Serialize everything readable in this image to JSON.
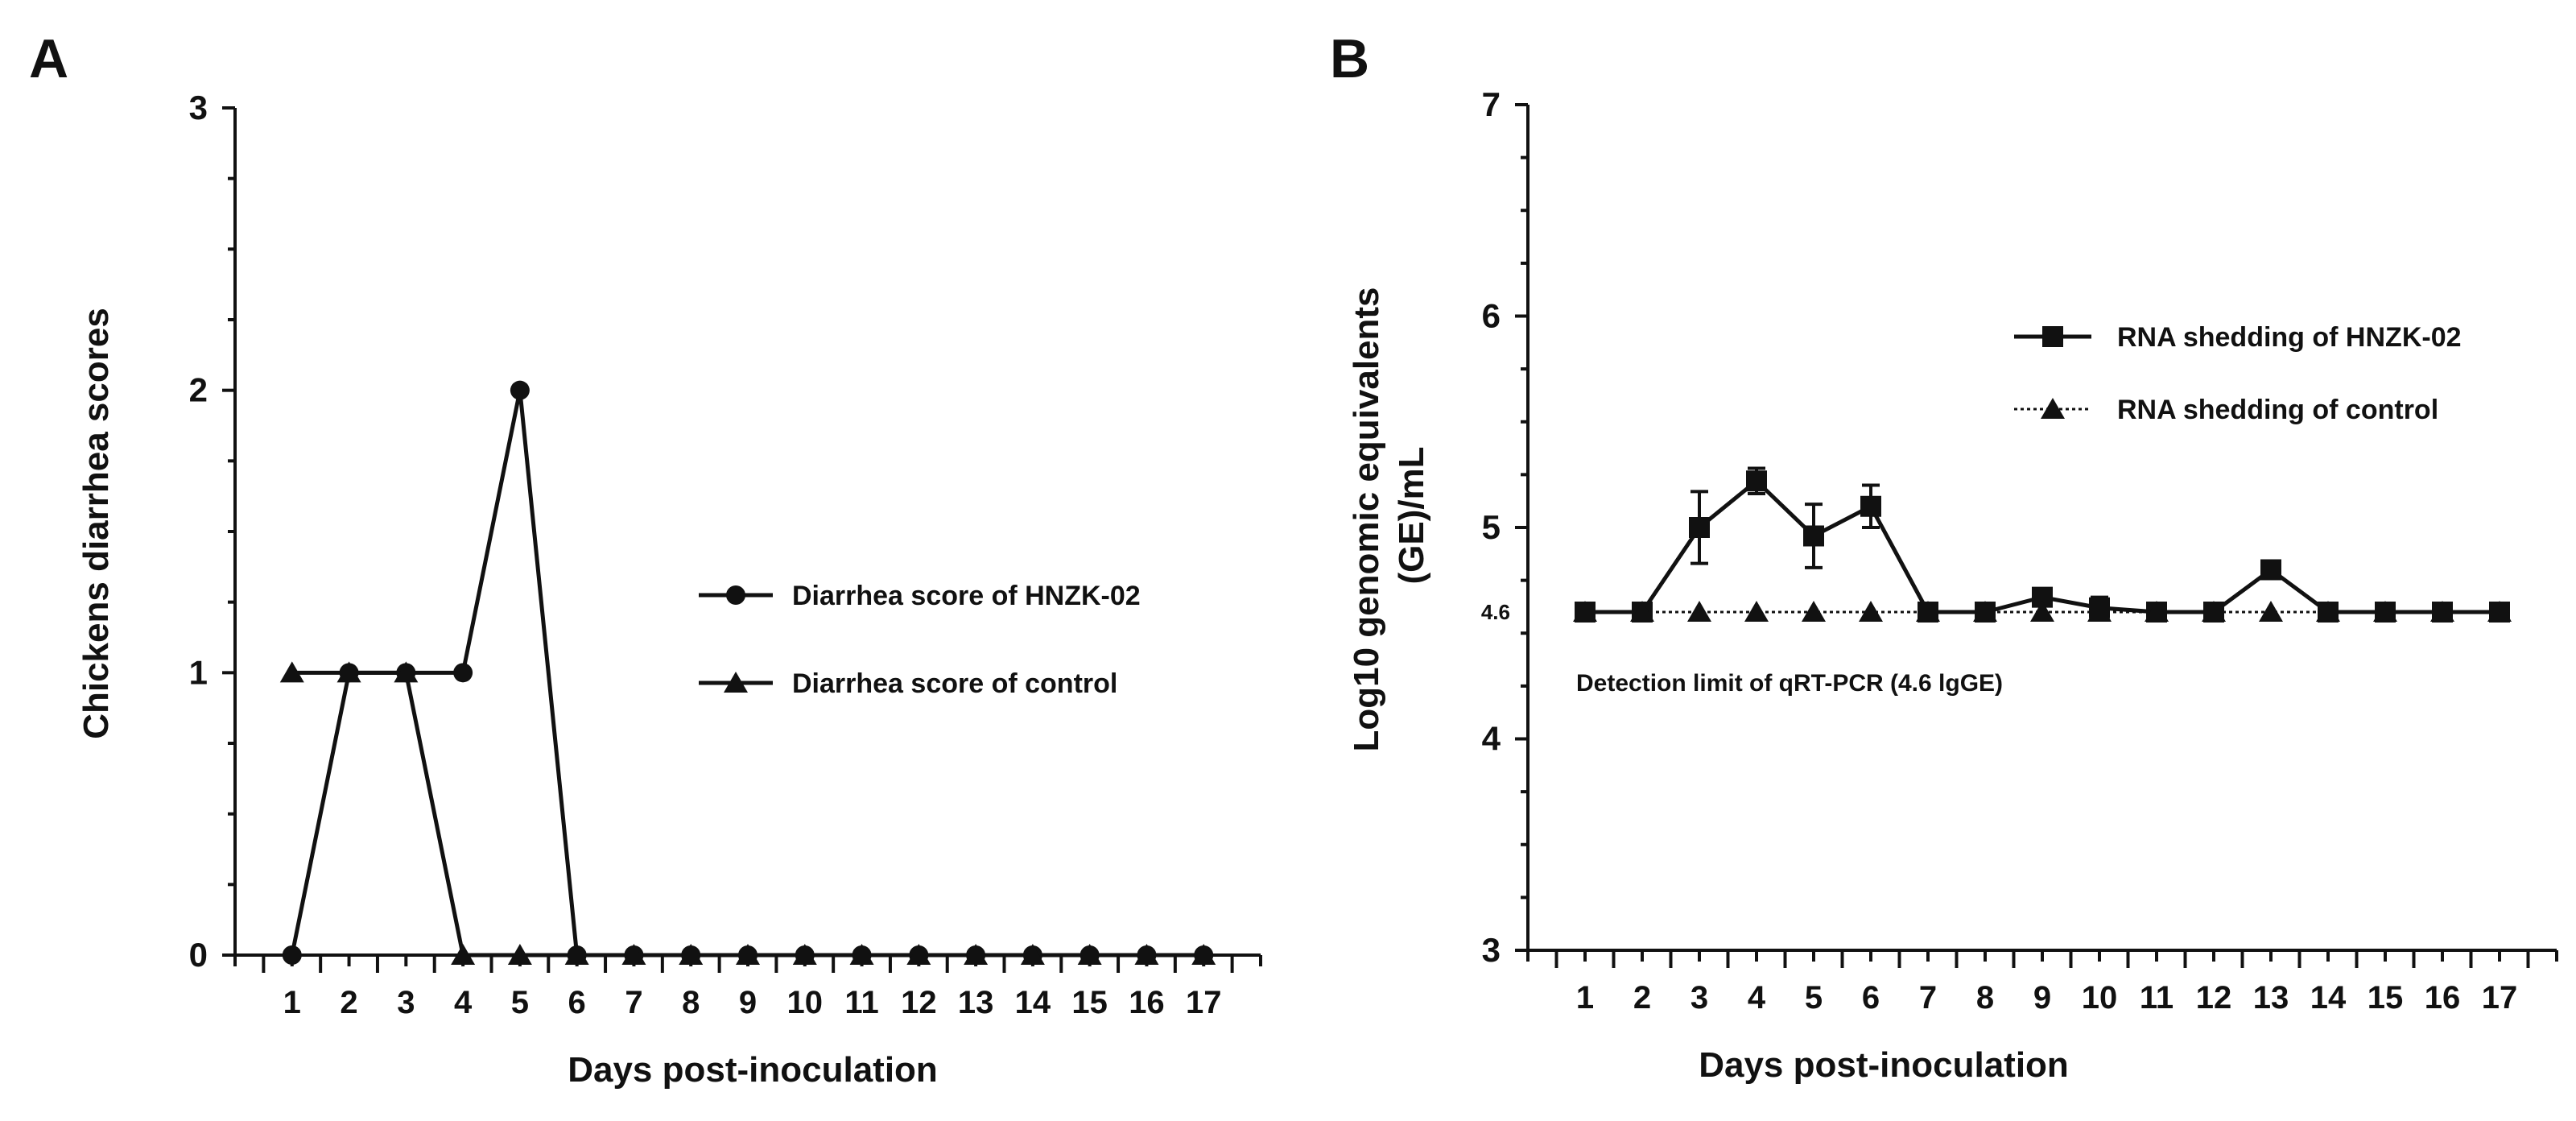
{
  "panels": [
    {
      "label": "A",
      "chart_data": {
        "type": "line",
        "title": "",
        "xlabel": "Days post-inoculation",
        "ylabel": "Chickens diarrhea scores",
        "x": [
          1,
          2,
          3,
          4,
          5,
          6,
          7,
          8,
          9,
          10,
          11,
          12,
          13,
          14,
          15,
          16,
          17
        ],
        "xlim": [
          0,
          18
        ],
        "ylim": [
          0,
          3
        ],
        "yticks": [
          0,
          1,
          2,
          3
        ],
        "series": [
          {
            "name": "Diarrhea score of HNZK-02",
            "marker": "circle",
            "line": "solid",
            "values": [
              0,
              1,
              1,
              1,
              2,
              0,
              0,
              0,
              0,
              0,
              0,
              0,
              0,
              0,
              0,
              0,
              0
            ]
          },
          {
            "name": "Diarrhea score of control",
            "marker": "triangle",
            "line": "solid",
            "values": [
              1,
              1,
              1,
              0,
              0,
              0,
              0,
              0,
              0,
              0,
              0,
              0,
              0,
              0,
              0,
              0,
              0
            ]
          }
        ],
        "legend_position": "center-right"
      }
    },
    {
      "label": "B",
      "chart_data": {
        "type": "line",
        "title": "",
        "xlabel": "Days post-inoculation",
        "ylabel_line1": "Log10 genomic equivalents",
        "ylabel_line2": "(GE)/mL",
        "x": [
          1,
          2,
          3,
          4,
          5,
          6,
          7,
          8,
          9,
          10,
          11,
          12,
          13,
          14,
          15,
          16,
          17
        ],
        "xlim": [
          0,
          18
        ],
        "ylim": [
          3,
          7
        ],
        "yticks": [
          3,
          4,
          5,
          6,
          7
        ],
        "extra_ytick_label": "4.6",
        "extra_ytick_value": 4.6,
        "series": [
          {
            "name": "RNA shedding of HNZK-02",
            "marker": "square",
            "line": "solid",
            "values": [
              4.6,
              4.6,
              5.0,
              5.22,
              4.96,
              5.1,
              4.6,
              4.6,
              4.67,
              4.62,
              4.6,
              4.6,
              4.8,
              4.6,
              4.6,
              4.6,
              4.6
            ],
            "errors": [
              0,
              0,
              0.17,
              0.06,
              0.15,
              0.1,
              0,
              0,
              0,
              0.05,
              0,
              0,
              0,
              0,
              0,
              0,
              0
            ]
          },
          {
            "name": "RNA shedding of control",
            "marker": "triangle",
            "line": "dotted",
            "values": [
              4.6,
              4.6,
              4.6,
              4.6,
              4.6,
              4.6,
              4.6,
              4.6,
              4.6,
              4.6,
              4.6,
              4.6,
              4.6,
              4.6,
              4.6,
              4.6,
              4.6
            ]
          }
        ],
        "annotation": "Detection limit of qRT-PCR (4.6 lgGE)",
        "legend_position": "top-right"
      }
    }
  ],
  "colors": {
    "ink": "#111111",
    "background": "#ffffff"
  }
}
